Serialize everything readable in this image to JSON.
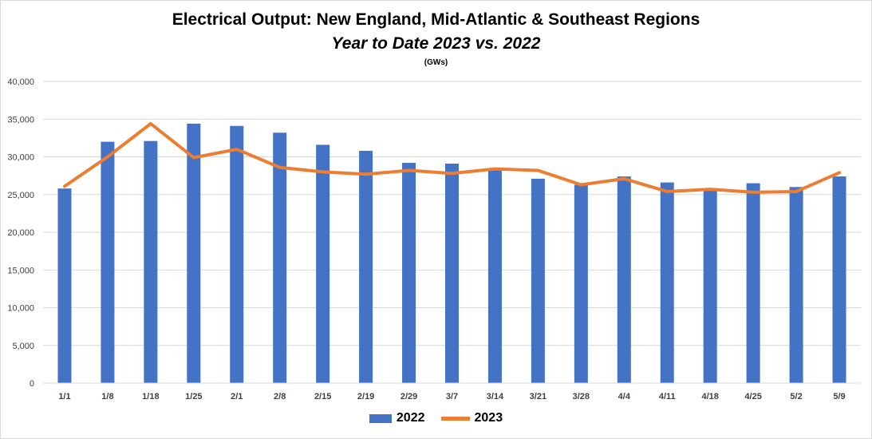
{
  "chart_data": {
    "type": "bar",
    "title": "Electrical Output:  New England, Mid-Atlantic & Southeast Regions",
    "subtitle": "Year to Date 2023 vs. 2022",
    "unit_label": "(GWs)",
    "categories": [
      "1/1",
      "1/8",
      "1/18",
      "1/25",
      "2/1",
      "2/8",
      "2/15",
      "2/19",
      "2/29",
      "3/7",
      "3/14",
      "3/21",
      "3/28",
      "4/4",
      "4/11",
      "4/18",
      "4/25",
      "5/2",
      "5/9"
    ],
    "series": [
      {
        "name": "2022",
        "type": "bar",
        "color": "#4472C4",
        "values": [
          25800,
          32000,
          32100,
          34400,
          34100,
          33200,
          31600,
          30800,
          29200,
          29100,
          28300,
          27100,
          26300,
          27400,
          26600,
          25500,
          26500,
          26000,
          27400
        ]
      },
      {
        "name": "2023",
        "type": "line",
        "color": "#ED7D31",
        "values": [
          26100,
          30000,
          34400,
          29900,
          31000,
          28600,
          28000,
          27700,
          28200,
          27800,
          28400,
          28200,
          26300,
          27100,
          25400,
          25700,
          25300,
          25400,
          27900
        ]
      }
    ],
    "ylim": [
      0,
      40000
    ],
    "yticks": [
      0,
      5000,
      10000,
      15000,
      20000,
      25000,
      30000,
      35000,
      40000
    ],
    "ytick_labels": [
      "0",
      "5,000",
      "10,000",
      "15,000",
      "20,000",
      "25,000",
      "30,000",
      "35,000",
      "40,000"
    ],
    "grid": true,
    "legend_position": "bottom"
  }
}
